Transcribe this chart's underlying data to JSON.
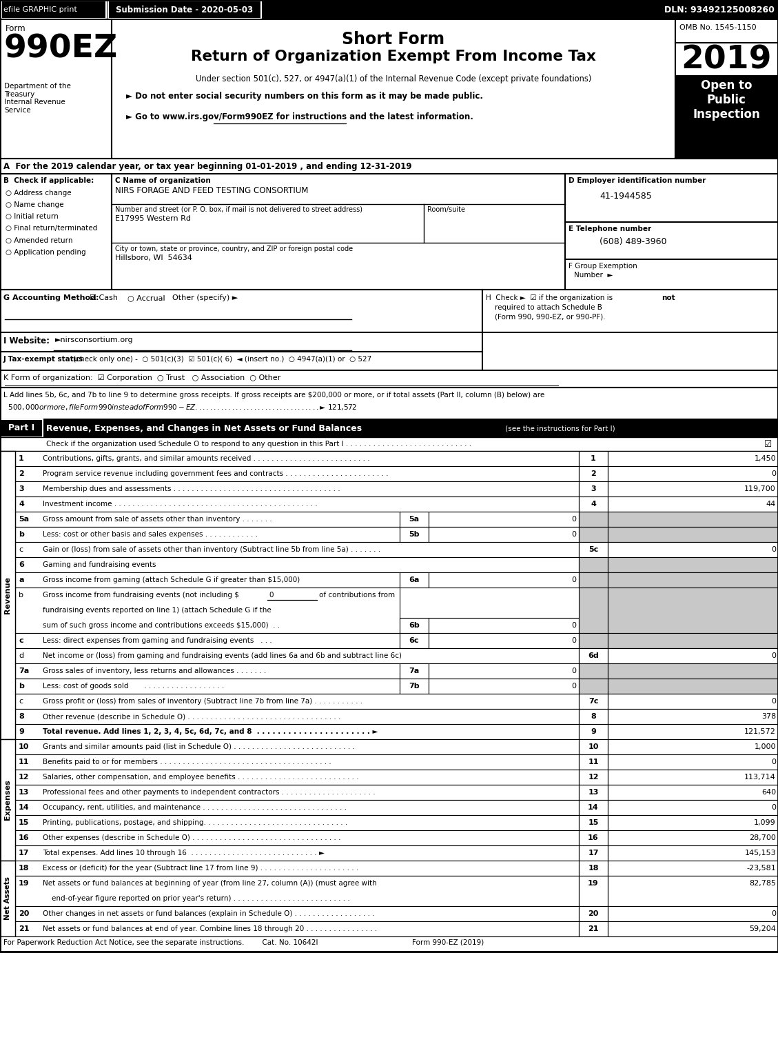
{
  "top_bar_efile": "efile GRAPHIC print",
  "top_bar_submission": "Submission Date - 2020-05-03",
  "top_bar_dln": "DLN: 93492125008260",
  "form_label": "Form",
  "form_number": "990EZ",
  "title_line1": "Short Form",
  "title_line2": "Return of Organization Exempt From Income Tax",
  "subtitle": "Under section 501(c), 527, or 4947(a)(1) of the Internal Revenue Code (except private foundations)",
  "bullet1": "► Do not enter social security numbers on this form as it may be made public.",
  "bullet2": "► Go to www.irs.gov/Form990EZ for instructions and the latest information.",
  "year": "2019",
  "omb": "OMB No. 1545-1150",
  "open_to": "Open to\nPublic\nInspection",
  "dept": "Department of the\nTreasury\nInternal Revenue\nService",
  "section_a": "A  For the 2019 calendar year, or tax year beginning 01-01-2019 , and ending 12-31-2019",
  "checkboxes_b": [
    "Address change",
    "Name change",
    "Initial return",
    "Final return/terminated",
    "Amended return",
    "Application pending"
  ],
  "org_name": "NIRS FORAGE AND FEED TESTING CONSORTIUM",
  "street": "E17995 Western Rd",
  "city": "Hillsboro, WI  54634",
  "ein": "41-1944585",
  "phone": "(608) 489-3960",
  "footer": "For Paperwork Reduction Act Notice, see the separate instructions.        Cat. No. 10642I                                          Form 990-EZ (2019)"
}
